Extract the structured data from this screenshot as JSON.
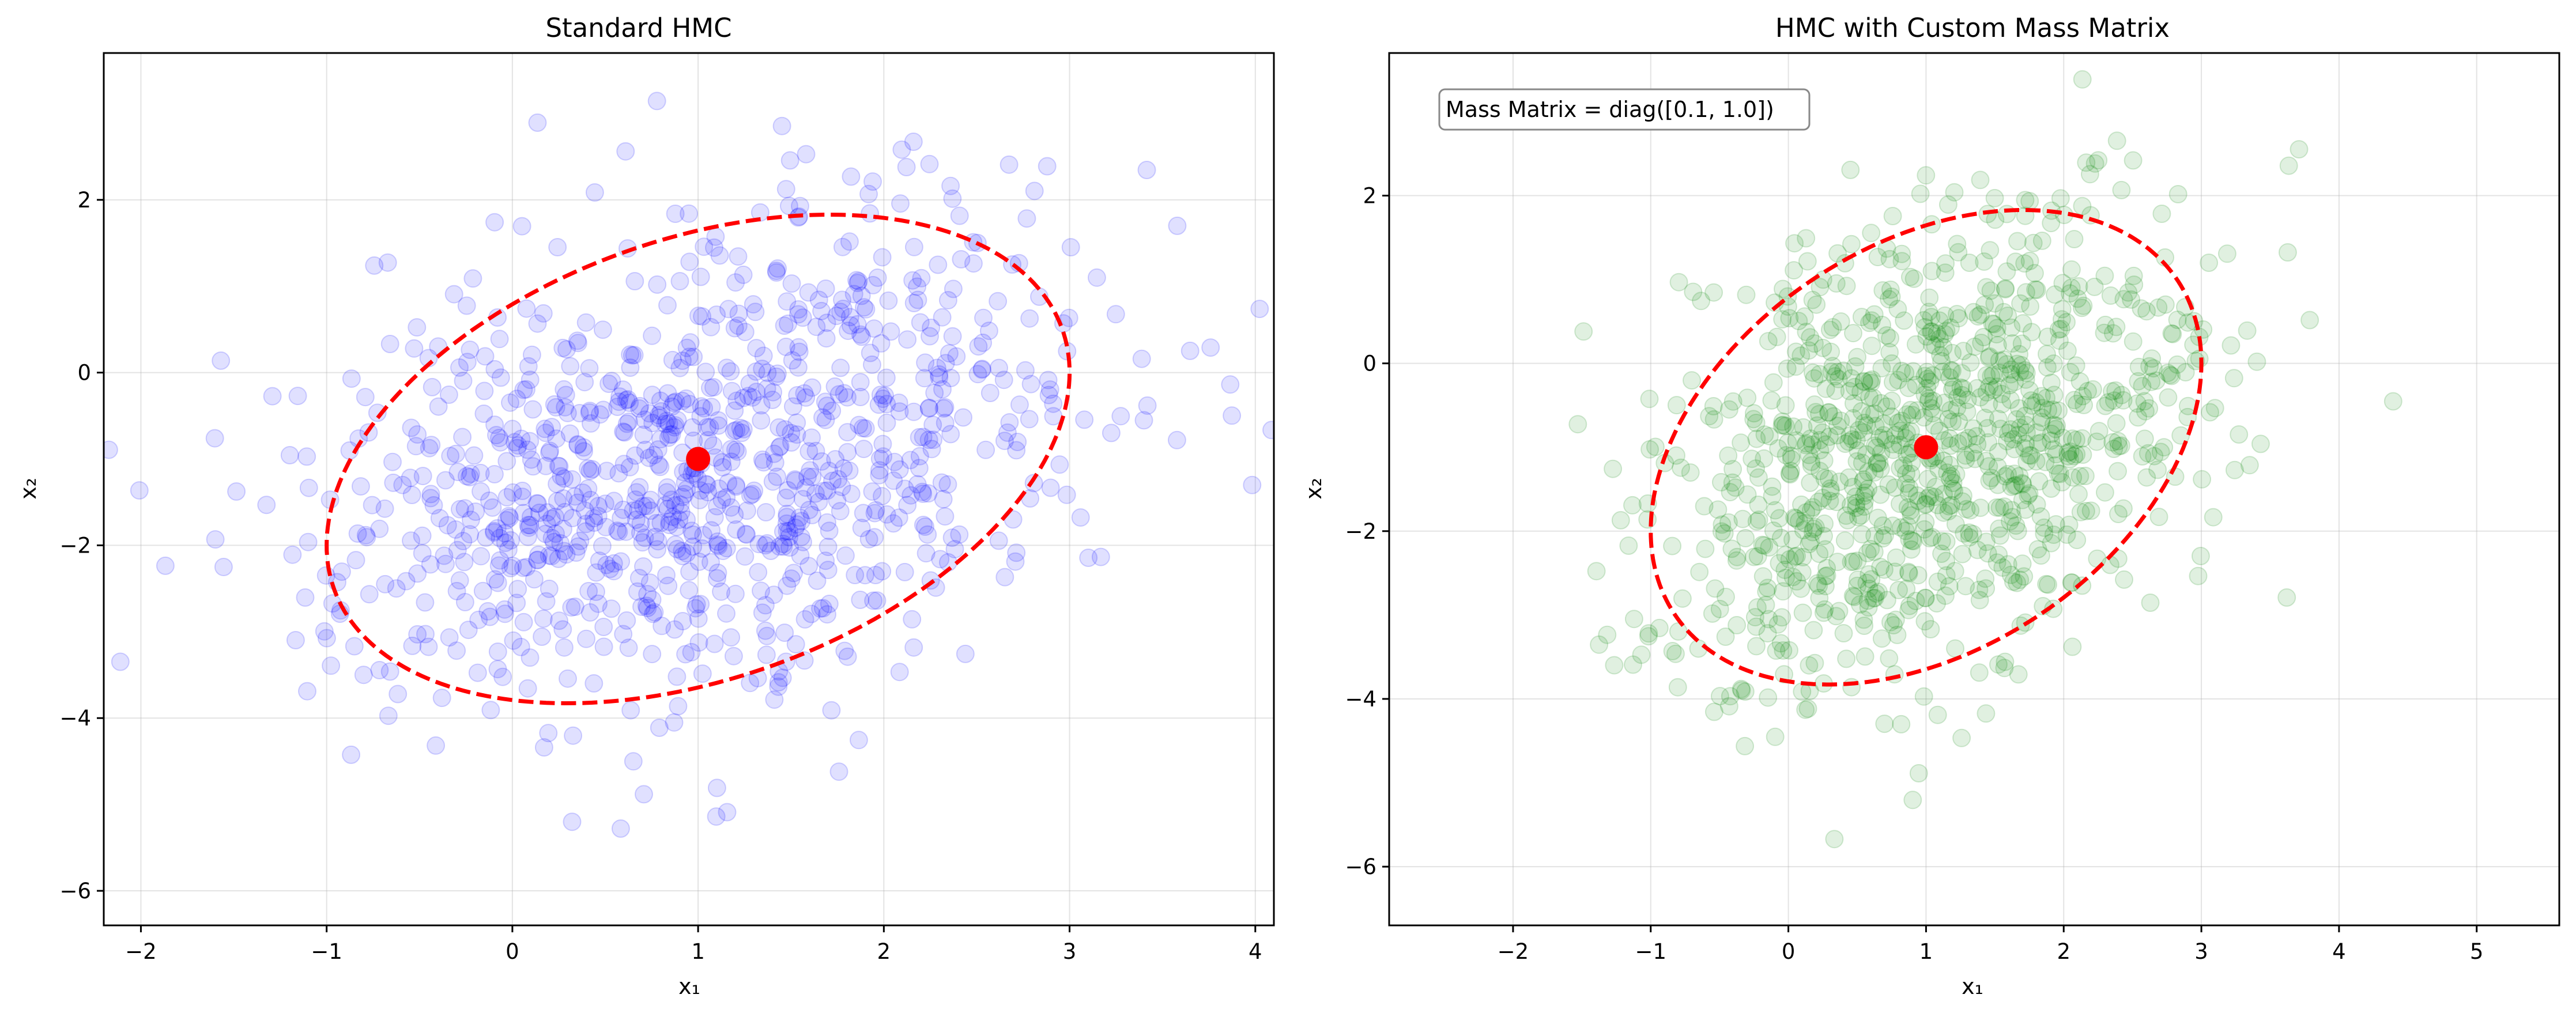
{
  "chart_data": [
    {
      "type": "scatter",
      "title": "Standard HMC",
      "xlabel": "x₁",
      "ylabel": "x₂",
      "xlim": [
        -2.2,
        4.1
      ],
      "ylim": [
        -6.4,
        3.7
      ],
      "xticks": [
        -2,
        -1,
        0,
        1,
        2,
        3,
        4
      ],
      "yticks": [
        -6,
        -4,
        -2,
        0,
        2
      ],
      "grid": true,
      "point_color": "#0000ff",
      "point_alpha": 0.12,
      "center": {
        "x": 1.0,
        "y": -1.0,
        "color": "#ff0000"
      },
      "ellipse": {
        "description": "2-sigma contour of the target Gaussian",
        "mean": [
          1.0,
          -1.0
        ],
        "cov": [
          [
            1.0,
            0.5
          ],
          [
            0.5,
            2.0
          ]
        ],
        "n_std": 2,
        "color": "#ff0000",
        "style": "dashed"
      },
      "samples": {
        "count": 1000,
        "mean": [
          1.0,
          -1.0
        ],
        "cov": [
          [
            1.0,
            0.5
          ],
          [
            0.5,
            2.0
          ]
        ],
        "seed": 7
      },
      "annotation": ""
    },
    {
      "type": "scatter",
      "title": "HMC with Custom Mass Matrix",
      "xlabel": "x₁",
      "ylabel": "x₂",
      "xlim": [
        -2.9,
        5.6
      ],
      "ylim": [
        -6.7,
        3.7
      ],
      "xticks": [
        -2,
        -1,
        0,
        1,
        2,
        3,
        4,
        5
      ],
      "yticks": [
        -6,
        -4,
        -2,
        0,
        2
      ],
      "grid": true,
      "point_color": "#008000",
      "point_alpha": 0.12,
      "center": {
        "x": 1.0,
        "y": -1.0,
        "color": "#ff0000"
      },
      "ellipse": {
        "description": "2-sigma contour of the target Gaussian",
        "mean": [
          1.0,
          -1.0
        ],
        "cov": [
          [
            1.0,
            0.5
          ],
          [
            0.5,
            2.0
          ]
        ],
        "n_std": 2,
        "color": "#ff0000",
        "style": "dashed"
      },
      "samples": {
        "count": 1000,
        "mean": [
          1.0,
          -1.0
        ],
        "cov": [
          [
            1.0,
            0.5
          ],
          [
            0.5,
            2.0
          ]
        ],
        "seed": 42
      },
      "annotation": "Mass Matrix = diag([0.1, 1.0])"
    }
  ]
}
